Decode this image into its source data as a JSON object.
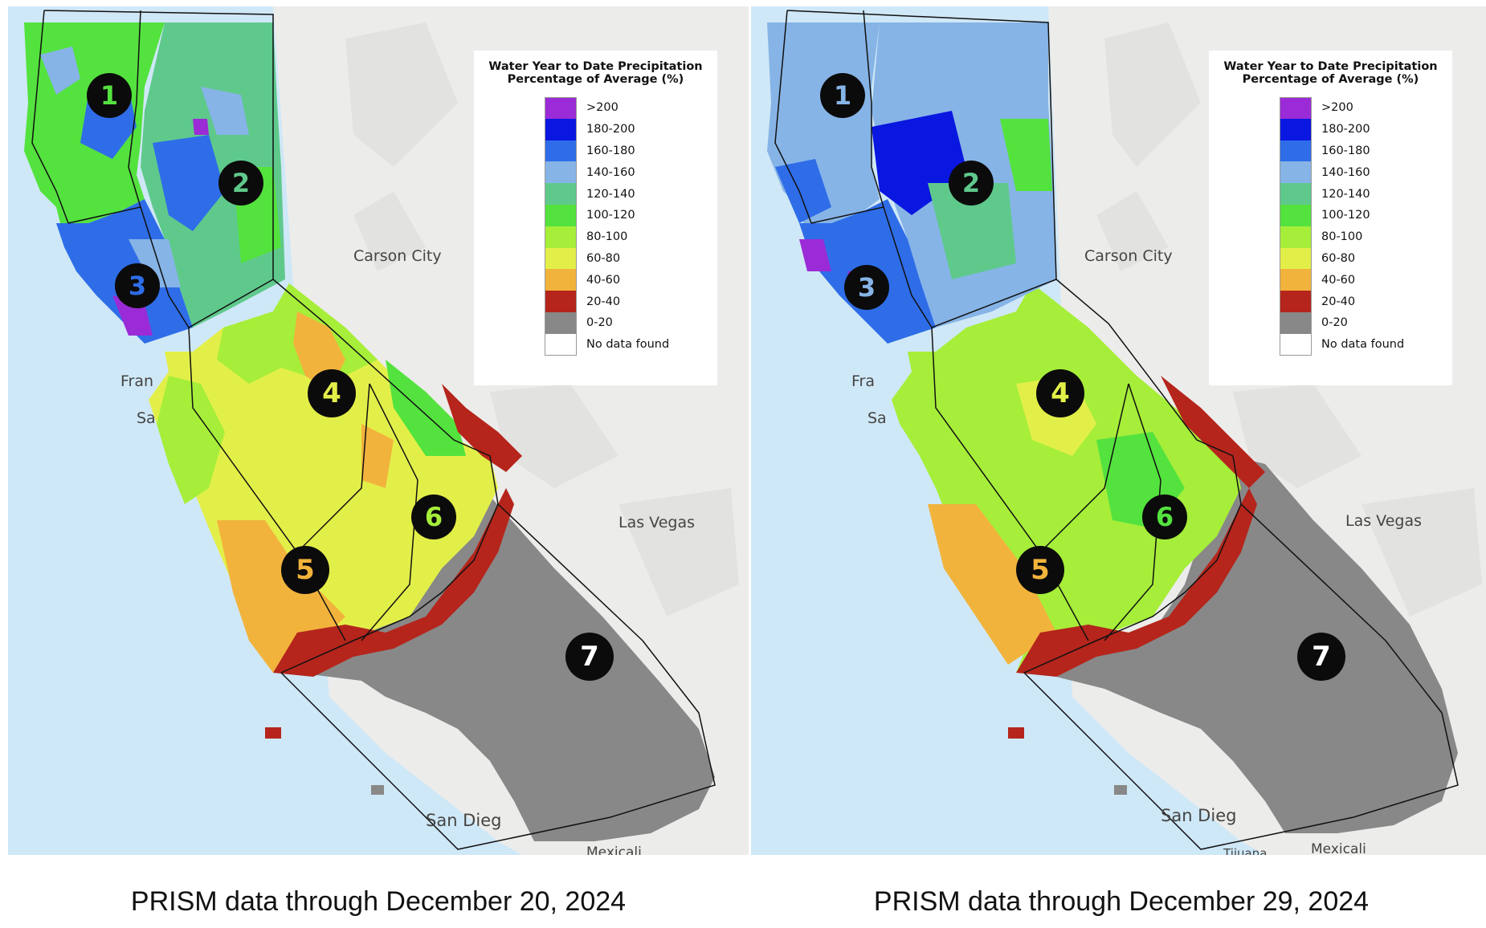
{
  "colors": {
    "ocean": "#cfe8f7",
    "land": "#ececea",
    "hillshade": "#dcdcd8",
    "region_border": "#111111",
    "marker_fill": "#0b0b0b"
  },
  "panels": [
    {
      "legend": {
        "title_line1": "Water Year to Date Precipitation",
        "title_line2": "Percentage of Average (%)",
        "items": [
          {
            "label": ">200",
            "color": "#9b2bd6"
          },
          {
            "label": "180-200",
            "color": "#0a17e0"
          },
          {
            "label": "160-180",
            "color": "#2f6de8"
          },
          {
            "label": "140-160",
            "color": "#86b4e6"
          },
          {
            "label": "120-140",
            "color": "#5fc98c"
          },
          {
            "label": "100-120",
            "color": "#54e23e"
          },
          {
            "label": "80-100",
            "color": "#a6ee3a"
          },
          {
            "label": "60-80",
            "color": "#e3ef49"
          },
          {
            "label": "40-60",
            "color": "#f2b33c"
          },
          {
            "label": "20-40",
            "color": "#b5251c"
          },
          {
            "label": "0-20",
            "color": "#888888"
          },
          {
            "label": "No data found",
            "color": "#ffffff"
          }
        ]
      },
      "places": [
        "Carson City",
        "Las Vegas",
        "San Dieg",
        "Fran",
        "Sa",
        "Mexicali"
      ],
      "regions": [
        {
          "number": "1",
          "color": "#54e23e"
        },
        {
          "number": "2",
          "color": "#5fc98c"
        },
        {
          "number": "3",
          "color": "#2f6de8"
        },
        {
          "number": "4",
          "color": "#e3ef49"
        },
        {
          "number": "5",
          "color": "#f2b33c"
        },
        {
          "number": "6",
          "color": "#a6ee3a"
        },
        {
          "number": "7",
          "color": "#888888"
        }
      ],
      "caption": "PRISM data through December 20, 2024"
    },
    {
      "legend": {
        "title_line1": "Water Year to Date Precipitation",
        "title_line2": "Percentage of Average (%)",
        "items": [
          {
            "label": ">200",
            "color": "#9b2bd6"
          },
          {
            "label": "180-200",
            "color": "#0a17e0"
          },
          {
            "label": "160-180",
            "color": "#2f6de8"
          },
          {
            "label": "140-160",
            "color": "#86b4e6"
          },
          {
            "label": "120-140",
            "color": "#5fc98c"
          },
          {
            "label": "100-120",
            "color": "#54e23e"
          },
          {
            "label": "80-100",
            "color": "#a6ee3a"
          },
          {
            "label": "60-80",
            "color": "#e3ef49"
          },
          {
            "label": "40-60",
            "color": "#f2b33c"
          },
          {
            "label": "20-40",
            "color": "#b5251c"
          },
          {
            "label": "0-20",
            "color": "#888888"
          },
          {
            "label": "No data found",
            "color": "#ffffff"
          }
        ]
      },
      "places": [
        "Carson City",
        "Las Vegas",
        "San Dieg",
        "Fra",
        "Sa",
        "Tijuana",
        "Mexicali"
      ],
      "regions": [
        {
          "number": "1",
          "color": "#86b4e6"
        },
        {
          "number": "2",
          "color": "#5fc98c"
        },
        {
          "number": "3",
          "color": "#86b4e6"
        },
        {
          "number": "4",
          "color": "#e3ef49"
        },
        {
          "number": "5",
          "color": "#f2b33c"
        },
        {
          "number": "6",
          "color": "#54e23e"
        },
        {
          "number": "7",
          "color": "#888888"
        }
      ],
      "caption": "PRISM data through December 29, 2024"
    }
  ]
}
